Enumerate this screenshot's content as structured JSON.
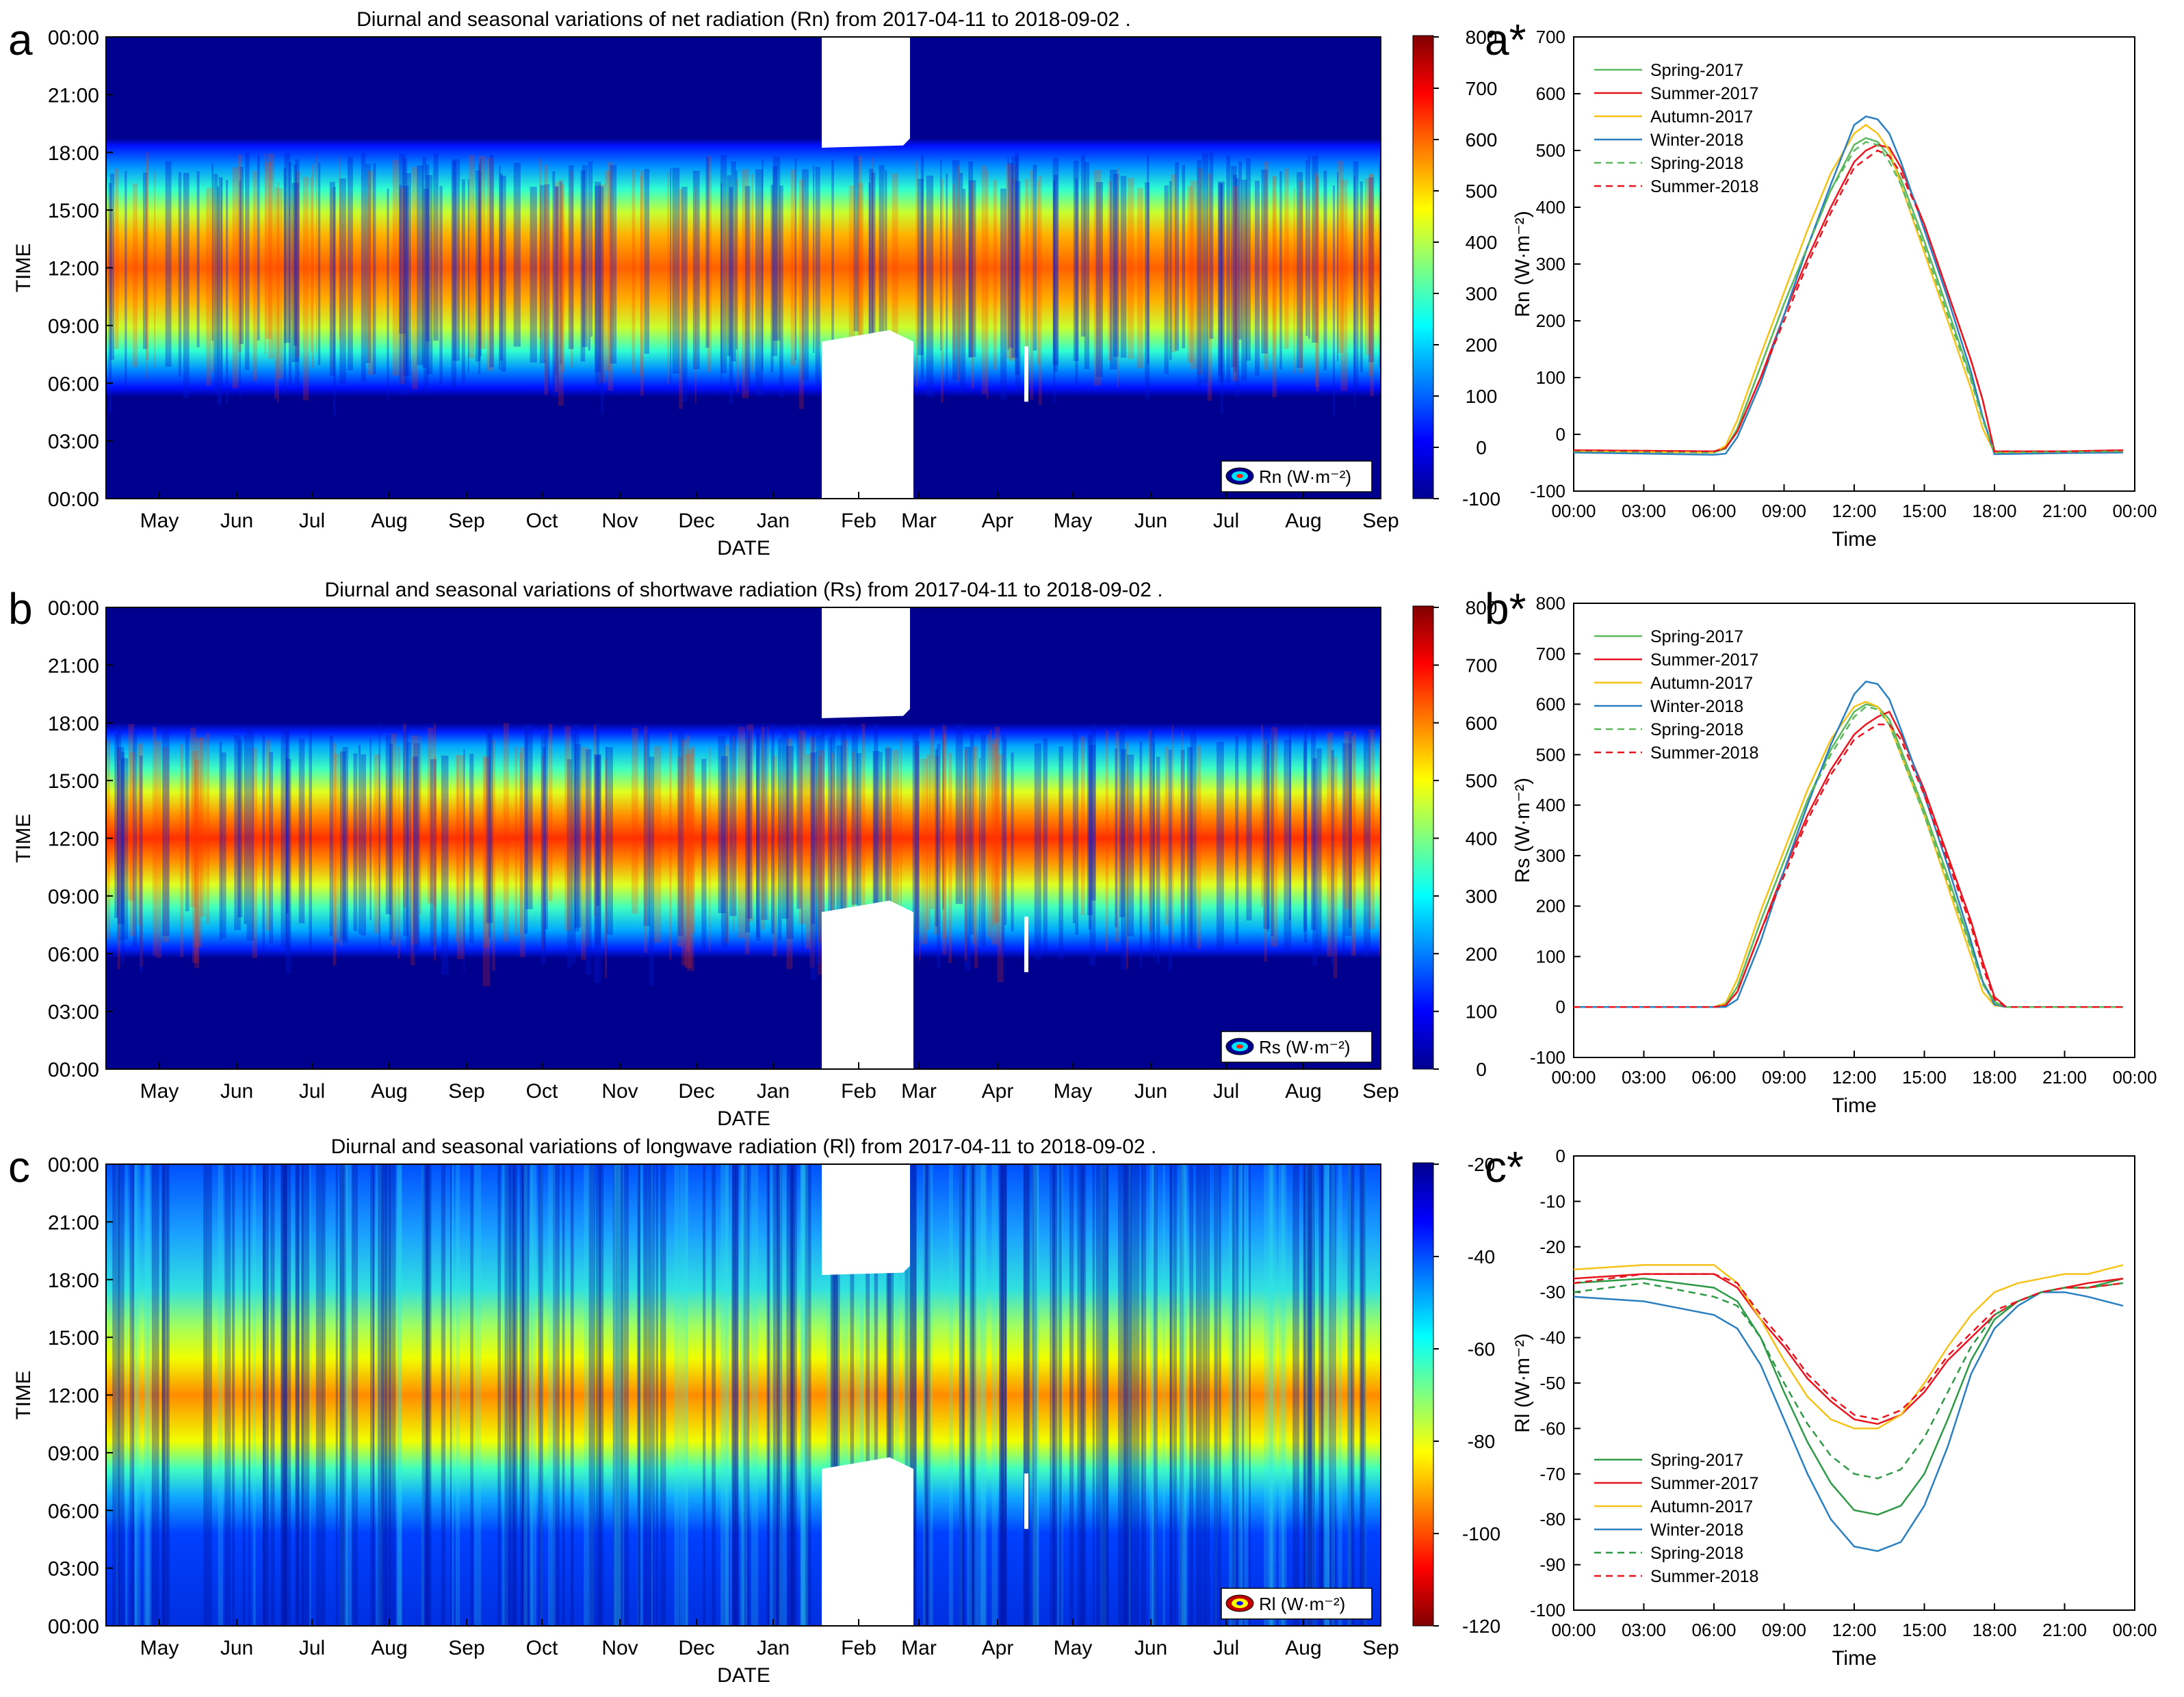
{
  "chart_data": [
    {
      "panel_label": "a",
      "type": "heatmap",
      "title": "Diurnal and seasonal variations of net radiation (Rn) from 2017-04-11 to 2018-09-02 .",
      "xlabel": "DATE",
      "ylabel": "TIME",
      "x_ticks": [
        "May",
        "Jun",
        "Jul",
        "Aug",
        "Sep",
        "Oct",
        "Nov",
        "Dec",
        "Jan",
        "Feb",
        "Mar",
        "Apr",
        "May",
        "Jun",
        "Jul",
        "Aug",
        "Sep"
      ],
      "y_ticks": [
        "00:00",
        "03:00",
        "06:00",
        "09:00",
        "12:00",
        "15:00",
        "18:00",
        "21:00",
        "00:00"
      ],
      "colorbar": {
        "ticks": [
          "800",
          "700",
          "600",
          "500",
          "400",
          "300",
          "200",
          "100",
          "0",
          "-100"
        ],
        "range": [
          -100,
          800
        ],
        "colormap": "jet"
      },
      "legend": "Rn (W·m⁻²)",
      "peak_band_hours": [
        10.5,
        14.5
      ],
      "gap_months": [
        "Feb"
      ]
    },
    {
      "panel_label": "b",
      "type": "heatmap",
      "title": "Diurnal and seasonal variations of shortwave radiation (Rs) from 2017-04-11 to 2018-09-02 .",
      "xlabel": "DATE",
      "ylabel": "TIME",
      "x_ticks": [
        "May",
        "Jun",
        "Jul",
        "Aug",
        "Sep",
        "Oct",
        "Nov",
        "Dec",
        "Jan",
        "Feb",
        "Mar",
        "Apr",
        "May",
        "Jun",
        "Jul",
        "Aug",
        "Sep"
      ],
      "y_ticks": [
        "00:00",
        "03:00",
        "06:00",
        "09:00",
        "12:00",
        "15:00",
        "18:00",
        "21:00",
        "00:00"
      ],
      "colorbar": {
        "ticks": [
          "800",
          "700",
          "600",
          "500",
          "400",
          "300",
          "200",
          "100",
          "0"
        ],
        "range": [
          0,
          800
        ],
        "colormap": "jet"
      },
      "legend": "Rs (W·m⁻²)",
      "peak_band_hours": [
        10.5,
        14.5
      ],
      "gap_months": [
        "Feb"
      ]
    },
    {
      "panel_label": "c",
      "type": "heatmap",
      "title": "Diurnal and seasonal variations of longwave radiation (Rl) from 2017-04-11 to 2018-09-02 .",
      "xlabel": "DATE",
      "ylabel": "TIME",
      "x_ticks": [
        "May",
        "Jun",
        "Jul",
        "Aug",
        "Sep",
        "Oct",
        "Nov",
        "Dec",
        "Jan",
        "Feb",
        "Mar",
        "Apr",
        "May",
        "Jun",
        "Jul",
        "Aug",
        "Sep"
      ],
      "y_ticks": [
        "00:00",
        "03:00",
        "06:00",
        "09:00",
        "12:00",
        "15:00",
        "18:00",
        "21:00",
        "00:00"
      ],
      "colorbar": {
        "ticks": [
          "-20",
          "-40",
          "-60",
          "-80",
          "-100",
          "-120"
        ],
        "range": [
          -120,
          -20
        ],
        "colormap": "jet_reversed"
      },
      "legend": "Rl (W·m⁻²)",
      "peak_band_hours": [
        10,
        16
      ],
      "gap_months": [
        "Feb"
      ]
    },
    {
      "panel_label": "a*",
      "type": "line",
      "xlabel": "Time",
      "ylabel": "Rn (W·m⁻²)",
      "x_ticks": [
        "00:00",
        "03:00",
        "06:00",
        "09:00",
        "12:00",
        "15:00",
        "18:00",
        "21:00",
        "00:00"
      ],
      "ylim": [
        -100,
        700
      ],
      "y_ticks": [
        "700",
        "600",
        "500",
        "400",
        "300",
        "200",
        "100",
        "0",
        "-100"
      ],
      "legend_position": "top-left",
      "x_hours": [
        0,
        6,
        6.5,
        7,
        8,
        9,
        10,
        11,
        12,
        12.5,
        13,
        13.5,
        14,
        15,
        16,
        17,
        17.5,
        18,
        21,
        23.5
      ],
      "series": [
        {
          "name": "Spring-2017",
          "color": "#5cb85c",
          "dash": false,
          "values": [
            -30,
            -32,
            -25,
            10,
            120,
            230,
            330,
            430,
            510,
            522,
            515,
            490,
            450,
            340,
            220,
            100,
            30,
            -32,
            -31,
            -30
          ]
        },
        {
          "name": "Summer-2017",
          "color": "#e8141e",
          "dash": false,
          "values": [
            -28,
            -30,
            -24,
            5,
            100,
            210,
            310,
            400,
            480,
            500,
            510,
            505,
            470,
            370,
            250,
            130,
            60,
            -30,
            -30,
            -28
          ]
        },
        {
          "name": "Autumn-2017",
          "color": "#f5c21a",
          "dash": false,
          "values": [
            -30,
            -32,
            -20,
            25,
            140,
            250,
            360,
            460,
            530,
            545,
            530,
            500,
            440,
            320,
            200,
            80,
            10,
            -32,
            -32,
            -30
          ]
        },
        {
          "name": "Winter-2018",
          "color": "#2a7fc1",
          "dash": false,
          "values": [
            -32,
            -36,
            -34,
            -5,
            90,
            210,
            330,
            440,
            545,
            560,
            555,
            530,
            480,
            360,
            240,
            110,
            30,
            -35,
            -33,
            -32
          ]
        },
        {
          "name": "Spring-2018",
          "color": "#5cb85c",
          "dash": true,
          "values": [
            -30,
            -32,
            -25,
            10,
            120,
            230,
            330,
            430,
            500,
            515,
            510,
            480,
            440,
            330,
            210,
            95,
            25,
            -32,
            -31,
            -30
          ]
        },
        {
          "name": "Summer-2018",
          "color": "#e8141e",
          "dash": true,
          "values": [
            -28,
            -30,
            -24,
            5,
            100,
            200,
            300,
            390,
            470,
            485,
            500,
            490,
            460,
            370,
            250,
            130,
            60,
            -30,
            -30,
            -28
          ]
        }
      ]
    },
    {
      "panel_label": "b*",
      "type": "line",
      "xlabel": "Time",
      "ylabel": "Rs (W·m⁻²)",
      "x_ticks": [
        "00:00",
        "03:00",
        "06:00",
        "09:00",
        "12:00",
        "15:00",
        "18:00",
        "21:00",
        "00:00"
      ],
      "ylim": [
        -100,
        800
      ],
      "y_ticks": [
        "800",
        "700",
        "600",
        "500",
        "400",
        "300",
        "200",
        "100",
        "0",
        "-100"
      ],
      "legend_position": "top-left",
      "x_hours": [
        0,
        6,
        6.5,
        7,
        8,
        9,
        10,
        11,
        12,
        12.5,
        13,
        13.5,
        14,
        15,
        16,
        17,
        17.5,
        18,
        18.5,
        21,
        23.5
      ],
      "series": [
        {
          "name": "Spring-2017",
          "color": "#5cb85c",
          "dash": false,
          "values": [
            0,
            0,
            5,
            40,
            170,
            290,
            410,
            510,
            585,
            600,
            595,
            570,
            510,
            390,
            260,
            120,
            50,
            10,
            0,
            0,
            0
          ]
        },
        {
          "name": "Summer-2017",
          "color": "#e8141e",
          "dash": false,
          "values": [
            0,
            0,
            3,
            30,
            150,
            270,
            380,
            470,
            540,
            560,
            575,
            585,
            540,
            430,
            300,
            170,
            90,
            20,
            0,
            0,
            0
          ]
        },
        {
          "name": "Autumn-2017",
          "color": "#f5c21a",
          "dash": false,
          "values": [
            0,
            0,
            8,
            55,
            190,
            310,
            430,
            530,
            595,
            605,
            595,
            560,
            500,
            380,
            240,
            100,
            30,
            3,
            0,
            0,
            0
          ]
        },
        {
          "name": "Winter-2018",
          "color": "#2a7fc1",
          "dash": false,
          "values": [
            0,
            0,
            0,
            15,
            130,
            270,
            400,
            520,
            620,
            645,
            640,
            610,
            550,
            420,
            280,
            130,
            50,
            5,
            0,
            0,
            0
          ]
        },
        {
          "name": "Spring-2018",
          "color": "#5cb85c",
          "dash": true,
          "values": [
            0,
            0,
            5,
            40,
            170,
            290,
            410,
            500,
            575,
            595,
            590,
            560,
            500,
            380,
            250,
            115,
            45,
            8,
            0,
            0,
            0
          ]
        },
        {
          "name": "Summer-2018",
          "color": "#e8141e",
          "dash": true,
          "values": [
            0,
            0,
            3,
            30,
            150,
            260,
            370,
            460,
            530,
            545,
            560,
            560,
            530,
            420,
            290,
            160,
            80,
            15,
            0,
            0,
            0
          ]
        }
      ]
    },
    {
      "panel_label": "c*",
      "type": "line",
      "xlabel": "Time",
      "ylabel": "Rl (W·m⁻²)",
      "x_ticks": [
        "00:00",
        "03:00",
        "06:00",
        "09:00",
        "12:00",
        "15:00",
        "18:00",
        "21:00",
        "00:00"
      ],
      "ylim": [
        -100,
        0
      ],
      "y_ticks": [
        "0",
        "-10",
        "-20",
        "-30",
        "-40",
        "-50",
        "-60",
        "-70",
        "-80",
        "-90",
        "-100"
      ],
      "legend_position": "bottom-left",
      "x_hours": [
        0,
        3,
        6,
        7,
        8,
        9,
        10,
        11,
        12,
        13,
        14,
        15,
        16,
        17,
        18,
        19,
        20,
        21,
        22,
        23.5
      ],
      "series": [
        {
          "name": "Spring-2017",
          "color": "#2f9a46",
          "dash": false,
          "values": [
            -28,
            -27,
            -29,
            -32,
            -40,
            -52,
            -63,
            -72,
            -78,
            -79,
            -77,
            -70,
            -58,
            -45,
            -36,
            -32,
            -30,
            -29,
            -29,
            -27
          ]
        },
        {
          "name": "Summer-2017",
          "color": "#e8141e",
          "dash": false,
          "values": [
            -27,
            -26,
            -26,
            -29,
            -36,
            -42,
            -49,
            -54,
            -58,
            -59,
            -57,
            -52,
            -45,
            -40,
            -35,
            -32,
            -30,
            -29,
            -28,
            -27
          ]
        },
        {
          "name": "Autumn-2017",
          "color": "#f5c21a",
          "dash": false,
          "values": [
            -25,
            -24,
            -24,
            -28,
            -36,
            -45,
            -53,
            -58,
            -60,
            -60,
            -57,
            -50,
            -42,
            -35,
            -30,
            -28,
            -27,
            -26,
            -26,
            -24
          ]
        },
        {
          "name": "Winter-2018",
          "color": "#2a7fc1",
          "dash": false,
          "values": [
            -31,
            -32,
            -35,
            -38,
            -46,
            -58,
            -70,
            -80,
            -86,
            -87,
            -85,
            -77,
            -64,
            -48,
            -38,
            -33,
            -30,
            -30,
            -31,
            -33
          ]
        },
        {
          "name": "Spring-2018",
          "color": "#2f9a46",
          "dash": true,
          "values": [
            -30,
            -28,
            -31,
            -33,
            -40,
            -50,
            -59,
            -66,
            -70,
            -71,
            -69,
            -62,
            -52,
            -42,
            -35,
            -32,
            -30,
            -29,
            -29,
            -28
          ]
        },
        {
          "name": "Summer-2018",
          "color": "#e8141e",
          "dash": true,
          "values": [
            -28,
            -26,
            -26,
            -28,
            -35,
            -41,
            -48,
            -53,
            -57,
            -58,
            -56,
            -51,
            -44,
            -39,
            -34,
            -32,
            -30,
            -29,
            -29,
            -28
          ]
        }
      ]
    }
  ]
}
